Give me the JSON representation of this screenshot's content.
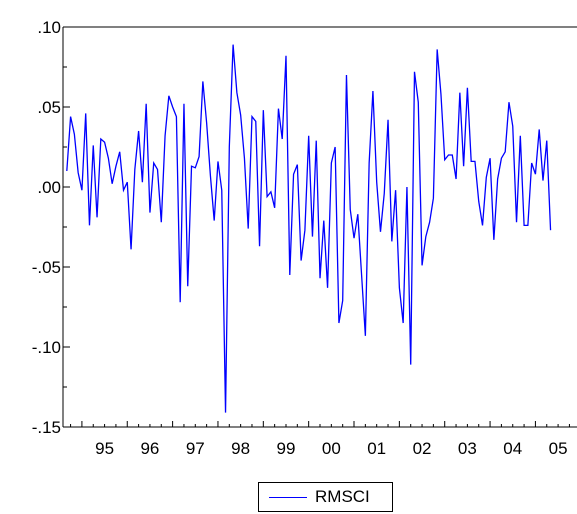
{
  "chart_data": {
    "type": "line",
    "title": "",
    "xlabel": "",
    "ylabel": "",
    "ylim": [
      -0.15,
      0.1
    ],
    "xlim": [
      1994.583,
      2005.917
    ],
    "y_ticks": [
      {
        "value": 0.1,
        "label": ".10"
      },
      {
        "value": 0.05,
        "label": ".05"
      },
      {
        "value": 0.0,
        "label": ".00"
      },
      {
        "value": -0.05,
        "label": "-.05"
      },
      {
        "value": -0.1,
        "label": "-.10"
      },
      {
        "value": -0.15,
        "label": "-.15"
      }
    ],
    "x_ticks": [
      "95",
      "96",
      "97",
      "98",
      "99",
      "00",
      "01",
      "02",
      "03",
      "04",
      "05"
    ],
    "x_start_year": 1994.667,
    "frequency": "monthly",
    "grid": false,
    "legend": "bottom",
    "colors": {
      "series": "#0000ff",
      "axis": "#000000"
    },
    "series": [
      {
        "name": "RMSCI",
        "values": [
          0.01,
          0.044,
          0.033,
          0.009,
          -0.002,
          0.046,
          -0.024,
          0.026,
          -0.019,
          0.03,
          0.028,
          0.018,
          0.002,
          0.013,
          0.022,
          -0.002,
          0.003,
          -0.039,
          0.011,
          0.035,
          0.003,
          0.052,
          -0.016,
          0.015,
          0.011,
          -0.022,
          0.032,
          0.057,
          0.05,
          0.044,
          -0.072,
          0.052,
          -0.062,
          0.013,
          0.012,
          0.019,
          0.066,
          0.04,
          0.007,
          -0.021,
          0.016,
          -0.002,
          -0.141,
          0.025,
          0.089,
          0.059,
          0.045,
          0.018,
          -0.026,
          0.044,
          0.041,
          -0.037,
          0.048,
          -0.006,
          -0.003,
          -0.013,
          0.049,
          0.03,
          0.082,
          -0.055,
          0.008,
          0.014,
          -0.046,
          -0.027,
          0.032,
          -0.031,
          0.029,
          -0.057,
          -0.021,
          -0.063,
          0.015,
          0.025,
          -0.085,
          -0.071,
          0.07,
          -0.014,
          -0.032,
          -0.017,
          -0.055,
          -0.093,
          0.015,
          0.06,
          0.003,
          -0.028,
          -0.004,
          0.042,
          -0.034,
          -0.002,
          -0.063,
          -0.085,
          0.0,
          -0.111,
          0.072,
          0.053,
          -0.049,
          -0.031,
          -0.022,
          -0.007,
          0.086,
          0.058,
          0.017,
          0.02,
          0.02,
          0.005,
          0.059,
          0.013,
          0.062,
          0.016,
          0.016,
          -0.009,
          -0.024,
          0.006,
          0.018,
          -0.033,
          0.005,
          0.018,
          0.022,
          0.053,
          0.038,
          -0.022,
          0.032,
          -0.024,
          -0.024,
          0.015,
          0.008,
          0.036,
          0.004,
          0.029,
          -0.027
        ]
      }
    ]
  }
}
